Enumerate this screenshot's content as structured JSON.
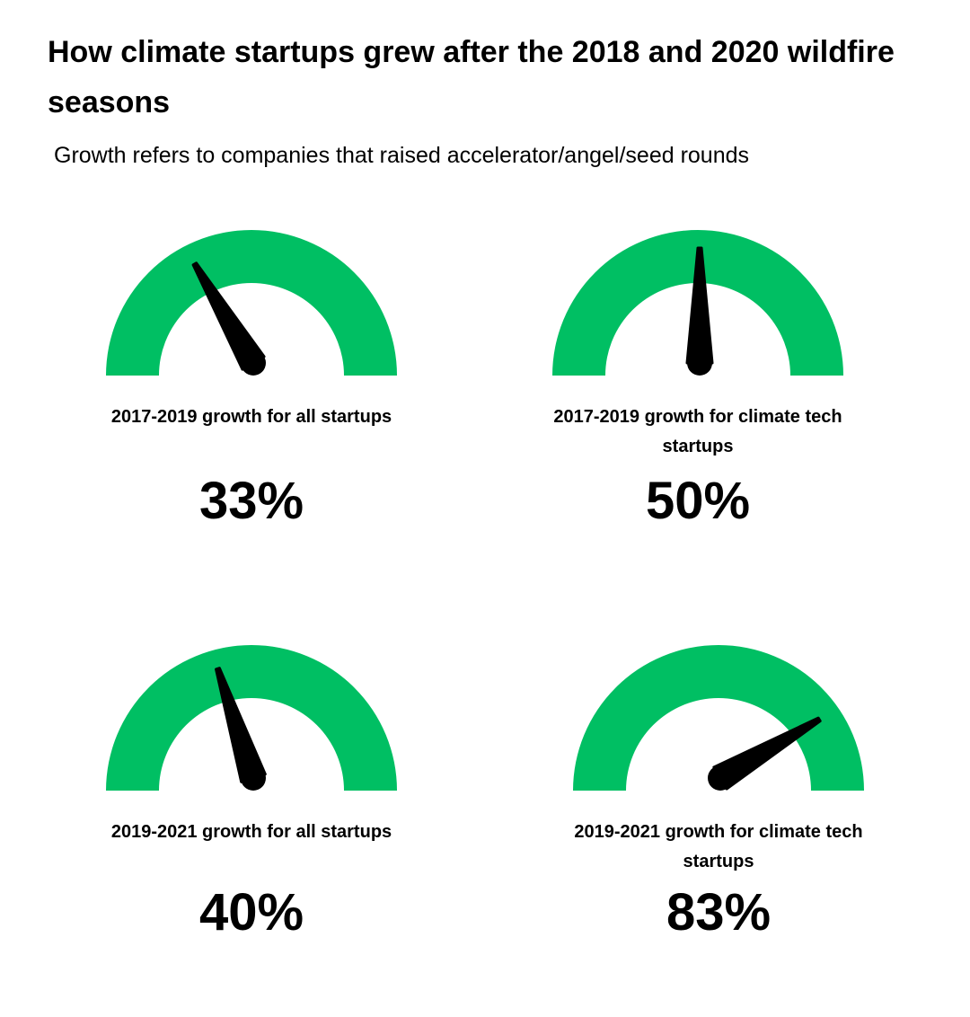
{
  "title": "How climate startups grew after the 2018 and 2020 wildfire seasons",
  "subtitle": "Growth refers to companies that raised accelerator/angel/seed rounds",
  "colors": {
    "gauge": "#00BF63",
    "needle": "#000000"
  },
  "chart_data": {
    "type": "gauge",
    "title": "How climate startups grew after the 2018 and 2020 wildfire seasons",
    "range": [
      0,
      100
    ],
    "gauges": [
      {
        "label": "2017-2019 growth for all startups",
        "value": 33,
        "display": "33%"
      },
      {
        "label": "2017-2019 growth for climate tech startups",
        "value": 50,
        "display": "50%"
      },
      {
        "label": "2019-2021 growth for all startups",
        "value": 40,
        "display": "40%"
      },
      {
        "label": "2019-2021 growth for climate tech startups",
        "value": 83,
        "display": "83%"
      }
    ]
  }
}
